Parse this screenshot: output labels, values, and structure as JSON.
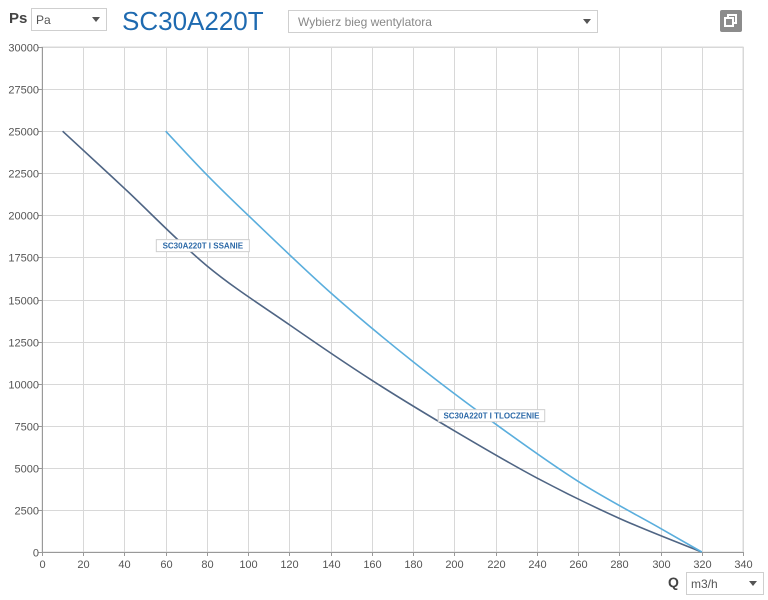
{
  "header": {
    "ps_label": "Ps",
    "ps_unit": "Pa",
    "model": "SC30A220T",
    "gear_placeholder": "Wybierz bieg wentylatora"
  },
  "footer": {
    "q_label": "Q",
    "q_unit": "m3/h"
  },
  "icons": {
    "copy": "copy-icon",
    "dropdown": "chevron-down-icon"
  },
  "chart_data": {
    "type": "line",
    "title": "",
    "xlabel": "Q",
    "ylabel": "Ps",
    "xlim": [
      0,
      340
    ],
    "ylim": [
      0,
      30000
    ],
    "x_ticks": [
      0,
      20,
      40,
      60,
      80,
      100,
      120,
      140,
      160,
      180,
      200,
      220,
      240,
      260,
      280,
      300,
      320,
      340
    ],
    "y_ticks": [
      0,
      2500,
      5000,
      7500,
      10000,
      12500,
      15000,
      17500,
      20000,
      22500,
      25000,
      27500,
      30000
    ],
    "grid": true,
    "series": [
      {
        "name": "SC30A220T I SSANIE",
        "color": "#4f6584",
        "points": [
          [
            10,
            25000
          ],
          [
            40,
            21600
          ],
          [
            80,
            17000
          ],
          [
            120,
            13500
          ],
          [
            160,
            10200
          ],
          [
            200,
            7200
          ],
          [
            240,
            4400
          ],
          [
            280,
            2000
          ],
          [
            320,
            0
          ]
        ]
      },
      {
        "name": "SC30A220T I TLOCZENIE",
        "color": "#5aaedd",
        "points": [
          [
            60,
            25000
          ],
          [
            80,
            22400
          ],
          [
            100,
            20000
          ],
          [
            140,
            15400
          ],
          [
            180,
            11300
          ],
          [
            220,
            7600
          ],
          [
            260,
            4200
          ],
          [
            300,
            1400
          ],
          [
            320,
            0
          ]
        ]
      }
    ],
    "annotations": [
      {
        "series": 0,
        "x": 78,
        "y": 18200
      },
      {
        "series": 1,
        "x": 218,
        "y": 8100
      }
    ]
  }
}
